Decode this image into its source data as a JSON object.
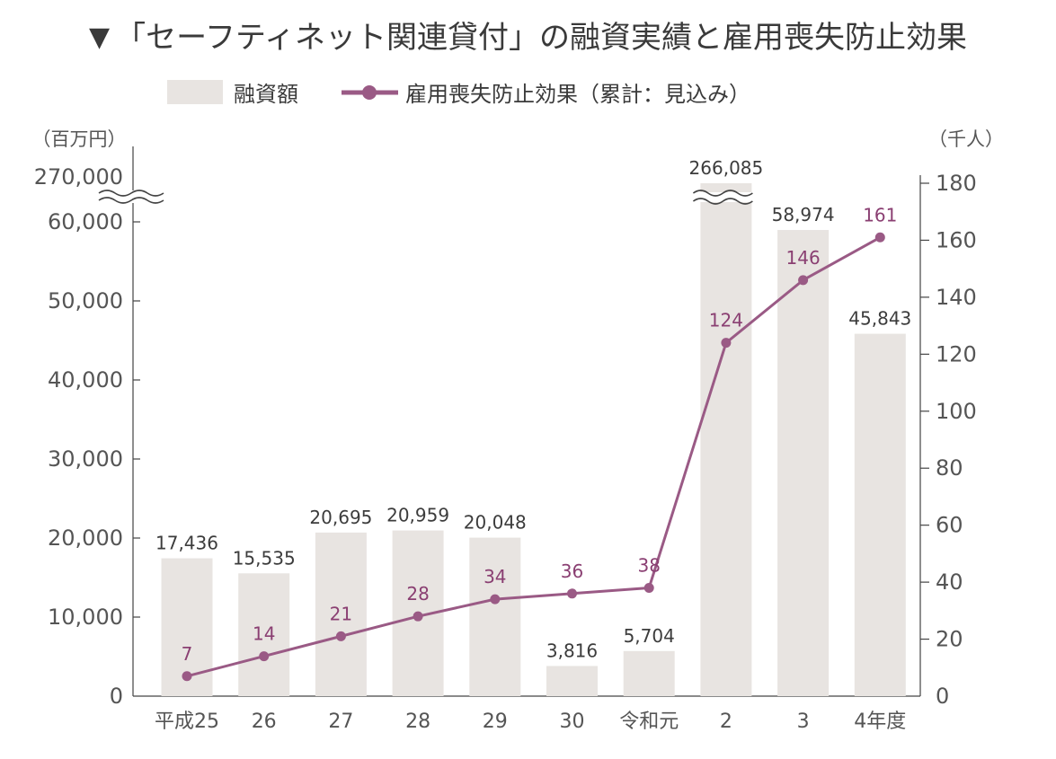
{
  "title_marker": "▼",
  "title": "「セーフティネット関連貸付」の融資実績と雇用喪失防止効果",
  "colors": {
    "bar": "#e8e4e1",
    "line": "#9a5a85",
    "line_label": "#8a3f72",
    "axis": "#444444",
    "text": "#3a3a3a"
  },
  "chart_data": {
    "type": "bar",
    "categories": [
      "平成25",
      "26",
      "27",
      "28",
      "29",
      "30",
      "令和元",
      "2",
      "3",
      "4年度"
    ],
    "left_axis": {
      "unit": "（百万円）",
      "ylim": [
        0,
        60000
      ],
      "ticks": [
        0,
        10000,
        20000,
        30000,
        40000,
        50000,
        60000
      ],
      "tick_labels": [
        "0",
        "10,000",
        "20,000",
        "30,000",
        "40,000",
        "50,000",
        "60,000"
      ],
      "break_label": "270,000",
      "broken": true
    },
    "right_axis": {
      "unit": "（千人）",
      "ylim": [
        0,
        180
      ],
      "ticks": [
        0,
        20,
        40,
        60,
        80,
        100,
        120,
        140,
        160,
        180
      ],
      "tick_labels": [
        "0",
        "20",
        "40",
        "60",
        "80",
        "100",
        "120",
        "140",
        "160",
        "180"
      ]
    },
    "series": [
      {
        "name": "融資額",
        "type": "bar",
        "axis": "left",
        "values": [
          17436,
          15535,
          20695,
          20959,
          20048,
          3816,
          5704,
          266085,
          58974,
          45843
        ],
        "labels": [
          "17,436",
          "15,535",
          "20,695",
          "20,959",
          "20,048",
          "3,816",
          "5,704",
          "266,085",
          "58,974",
          "45,843"
        ],
        "broken_bar_index": 7
      },
      {
        "name": "雇用喪失防止効果（累計：見込み）",
        "type": "line",
        "axis": "right",
        "values": [
          7,
          14,
          21,
          28,
          34,
          36,
          38,
          124,
          146,
          161
        ],
        "labels": [
          "7",
          "14",
          "21",
          "28",
          "34",
          "36",
          "38",
          "124",
          "146",
          "161"
        ]
      }
    ],
    "legend": "top"
  }
}
